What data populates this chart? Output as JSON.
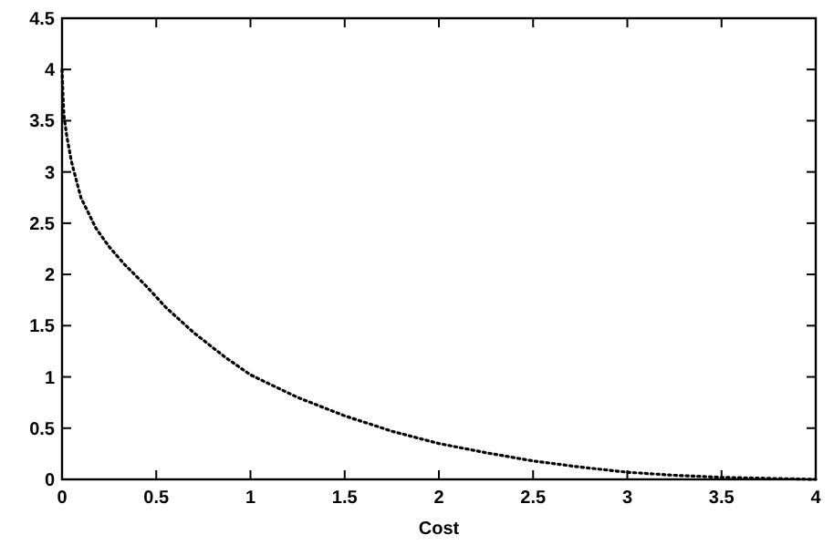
{
  "chart_data": {
    "type": "line",
    "xlabel": "Cost",
    "xlim": [
      0,
      4
    ],
    "xticks": [
      0,
      0.5,
      1,
      1.5,
      2,
      2.5,
      3,
      3.5,
      4
    ],
    "ylim": [
      0,
      4.5
    ],
    "yticks": [
      0,
      0.5,
      1,
      1.5,
      2,
      2.5,
      3,
      3.5,
      4,
      4.5
    ],
    "line_style": "dotted",
    "grid": false,
    "series": [
      {
        "color": "#000000",
        "x": [
          0,
          0.005,
          0.01,
          0.025,
          0.05,
          0.1,
          0.18,
          0.25,
          0.33,
          0.45,
          0.55,
          0.7,
          0.86,
          1,
          1.25,
          1.5,
          1.75,
          2,
          2.25,
          2.5,
          2.75,
          3,
          3.25,
          3.5,
          3.75,
          4
        ],
        "values": [
          4.0,
          3.75,
          3.55,
          3.35,
          3.1,
          2.75,
          2.45,
          2.27,
          2.1,
          1.88,
          1.68,
          1.43,
          1.2,
          1.02,
          0.8,
          0.62,
          0.47,
          0.35,
          0.26,
          0.18,
          0.12,
          0.07,
          0.04,
          0.02,
          0.01,
          0
        ]
      }
    ]
  }
}
